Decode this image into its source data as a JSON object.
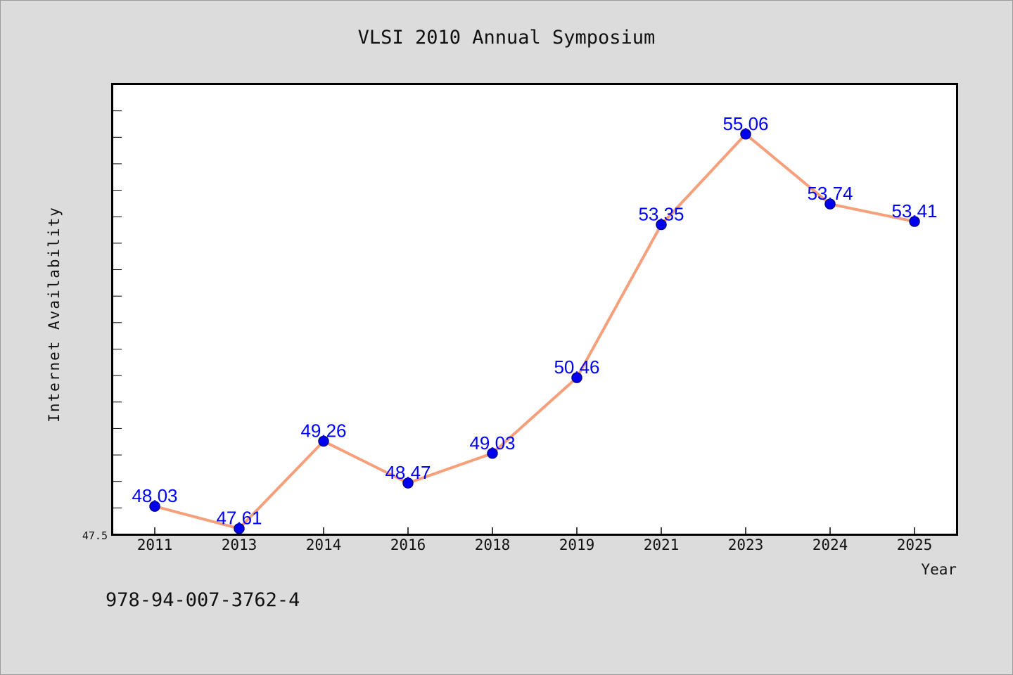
{
  "chart_data": {
    "type": "line",
    "title": "VLSI 2010 Annual Symposium",
    "xlabel": "Year",
    "ylabel": "Internet Availability",
    "categories": [
      "2011",
      "2013",
      "2014",
      "2016",
      "2018",
      "2019",
      "2021",
      "2023",
      "2024",
      "2025"
    ],
    "series": [
      {
        "values": [
          48.03,
          47.61,
          49.26,
          48.47,
          49.03,
          50.46,
          53.35,
          55.06,
          53.74,
          53.41
        ],
        "labels": [
          "48.03",
          "47.61",
          "49.26",
          "48.47",
          "49.03",
          "50.46",
          "53.35",
          "55.06",
          "53.74",
          "53.41"
        ]
      }
    ],
    "ylim": [
      47.5,
      56.0
    ],
    "y_tick_labels": [
      "47.5"
    ],
    "grid": false,
    "legend": "none",
    "colors": {
      "line": "#f5a07a",
      "marker": "#0000ee",
      "marker_stroke": "#00008b",
      "data_label": "#0000ff",
      "background": "#dcdcdc",
      "plot_background": "#ffffff"
    }
  },
  "footer_text": "978-94-007-3762-4"
}
